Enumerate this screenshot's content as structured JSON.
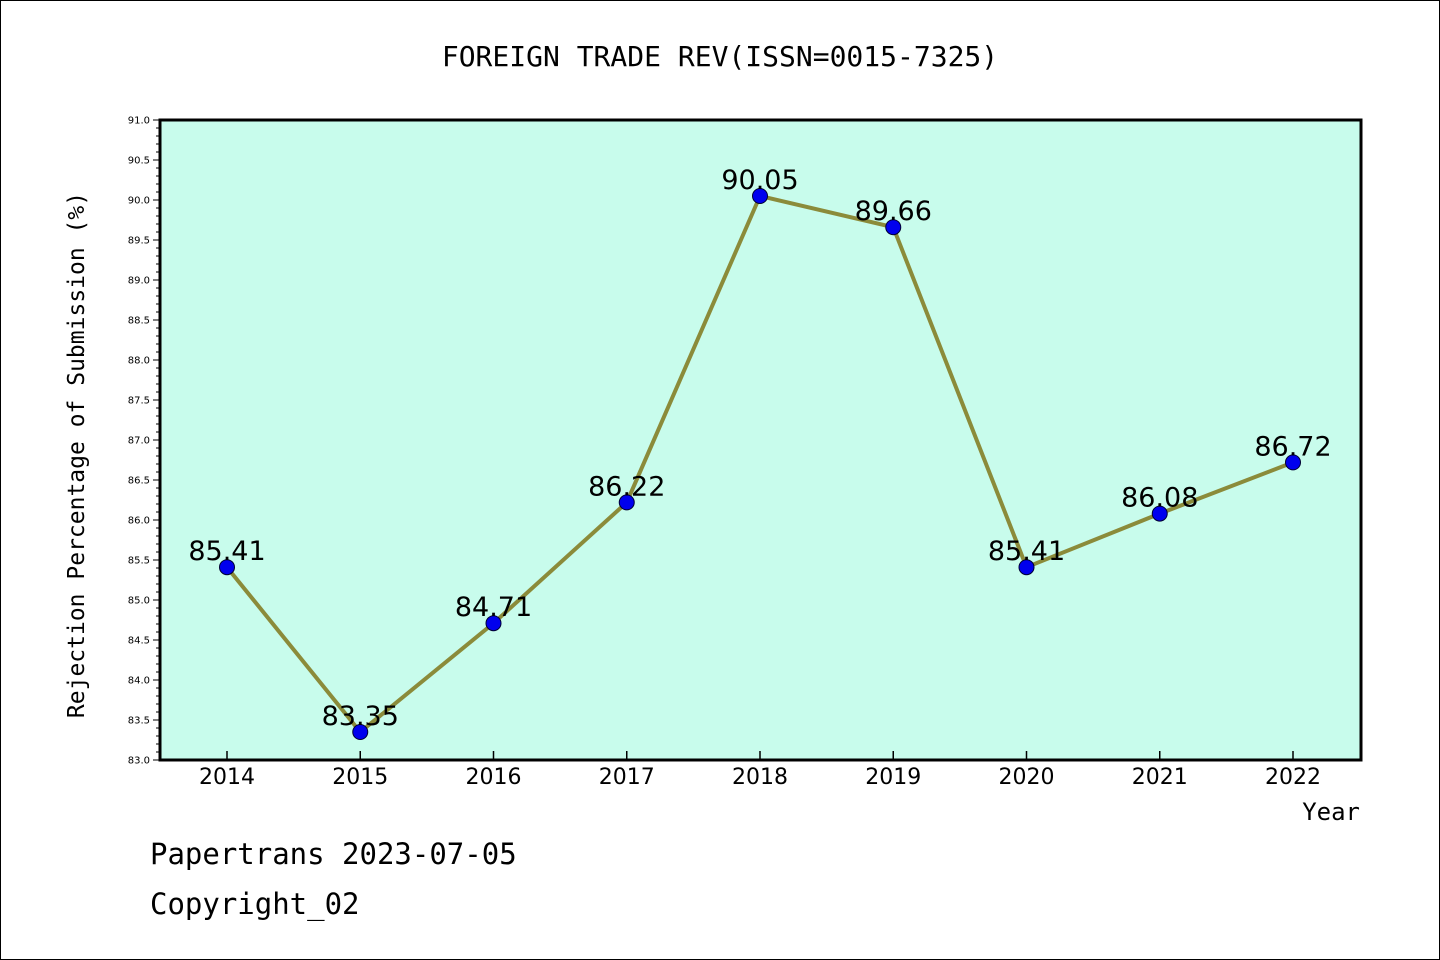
{
  "chart_data": {
    "type": "line",
    "title": "FOREIGN TRADE REV(ISSN=0015-7325)",
    "xlabel": "Year",
    "ylabel": "Rejection Percentage of Submission (%)",
    "ylim": [
      83.0,
      91.0
    ],
    "yticks": [
      "83.0",
      "83.5",
      "84.0",
      "84.5",
      "85.0",
      "85.5",
      "86.0",
      "86.5",
      "87.0",
      "87.5",
      "88.0",
      "88.5",
      "89.0",
      "89.5",
      "90.0",
      "90.5",
      "91.0"
    ],
    "categories": [
      "2014",
      "2015",
      "2016",
      "2017",
      "2018",
      "2019",
      "2020",
      "2021",
      "2022"
    ],
    "values": [
      85.41,
      83.35,
      84.71,
      86.22,
      90.05,
      89.66,
      85.41,
      86.08,
      86.72
    ],
    "value_labels": [
      "85.41",
      "83.35",
      "84.71",
      "86.22",
      "90.05",
      "89.66",
      "85.41",
      "86.08",
      "86.72"
    ],
    "grid": false,
    "colors": {
      "plot_bg": "#c8fcec",
      "line": "#8b8b3a",
      "marker": "#0000ee"
    }
  },
  "footer": {
    "line1": "Papertrans 2023-07-05",
    "line2": "Copyright_02"
  }
}
